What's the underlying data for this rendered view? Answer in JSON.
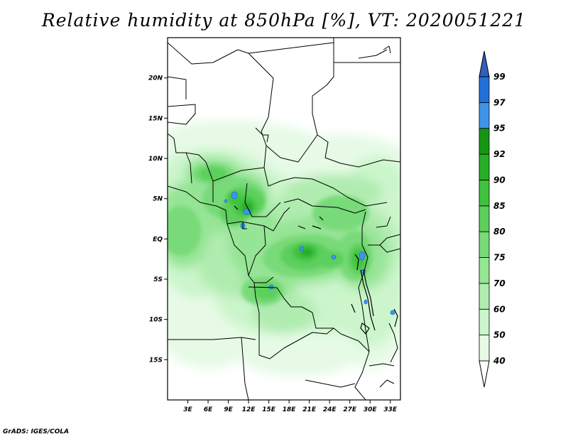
{
  "title": "Relative humidity at 850hPa [%], VT: 2020051221",
  "credit": "GrADS: IGES/COLA",
  "map": {
    "lon_range": [
      0,
      34.5
    ],
    "lat_range": [
      -20,
      25
    ],
    "lat_ticks": [
      {
        "lat": 20,
        "label": "20N"
      },
      {
        "lat": 15,
        "label": "15N"
      },
      {
        "lat": 10,
        "label": "10N"
      },
      {
        "lat": 5,
        "label": "5N"
      },
      {
        "lat": 0,
        "label": "EQ"
      },
      {
        "lat": -5,
        "label": "5S"
      },
      {
        "lat": -10,
        "label": "10S"
      },
      {
        "lat": -15,
        "label": "15S"
      }
    ],
    "lon_ticks": [
      {
        "lon": 3,
        "label": "3E"
      },
      {
        "lon": 6,
        "label": "6E"
      },
      {
        "lon": 9,
        "label": "9E"
      },
      {
        "lon": 12,
        "label": "12E"
      },
      {
        "lon": 15,
        "label": "15E"
      },
      {
        "lon": 18,
        "label": "18E"
      },
      {
        "lon": 21,
        "label": "21E"
      },
      {
        "lon": 24,
        "label": "24E"
      },
      {
        "lon": 27,
        "label": "27E"
      },
      {
        "lon": 30,
        "label": "30E"
      },
      {
        "lon": 33,
        "label": "33E"
      }
    ]
  },
  "colorbar": {
    "levels": [
      "40",
      "50",
      "60",
      "70",
      "75",
      "80",
      "85",
      "90",
      "92",
      "95",
      "97",
      "99"
    ],
    "colors": [
      "#ffffff",
      "#e6fae6",
      "#ccf5cc",
      "#b0ecb0",
      "#96e496",
      "#78da78",
      "#5ccf5c",
      "#3fc23f",
      "#27ad27",
      "#149614",
      "#3e95e8",
      "#2271d8",
      "#2f5fbf"
    ]
  }
}
